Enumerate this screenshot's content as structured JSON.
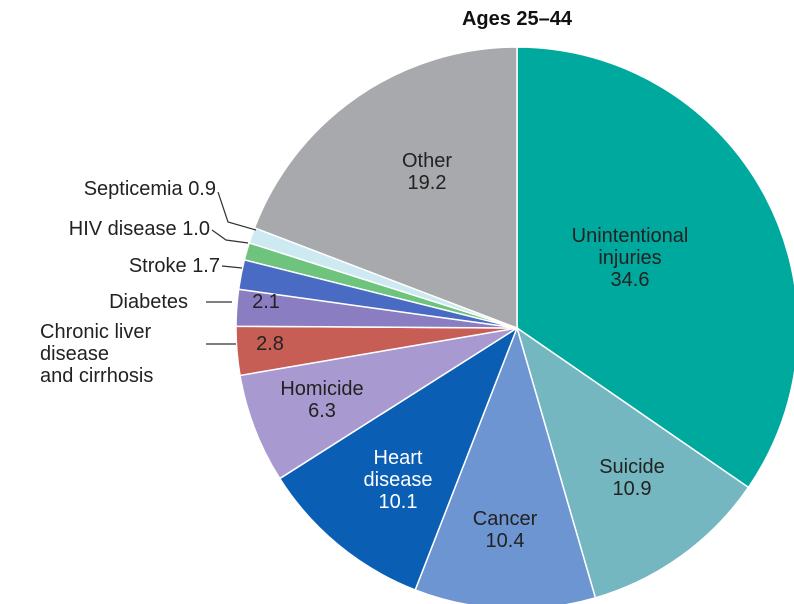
{
  "chart_data": {
    "type": "pie",
    "title": "Ages 25–44",
    "categories": [
      "Unintentional\ninjuries",
      "Suicide",
      "Cancer",
      "Heart\ndisease",
      "Homicide",
      "Chronic liver\ndisease\nand cirrhosis",
      "Diabetes",
      "Stroke",
      "HIV disease",
      "Septicemia",
      "Other"
    ],
    "values": [
      34.6,
      10.9,
      10.4,
      10.1,
      6.3,
      2.8,
      2.1,
      1.7,
      1.0,
      0.9,
      19.2
    ],
    "value_labels": [
      "34.6",
      "10.9",
      "10.4",
      "10.1",
      "6.3",
      "2.8",
      "2.1",
      "1.7",
      "1.0",
      "0.9",
      "19.2"
    ],
    "colors": [
      "#00a99d",
      "#74b7c0",
      "#6d95d2",
      "#0a5eb3",
      "#a89ad0",
      "#c65e56",
      "#8b7dc2",
      "#4a6bc3",
      "#6fc47d",
      "#cde9f1",
      "#a8a9ac"
    ]
  }
}
